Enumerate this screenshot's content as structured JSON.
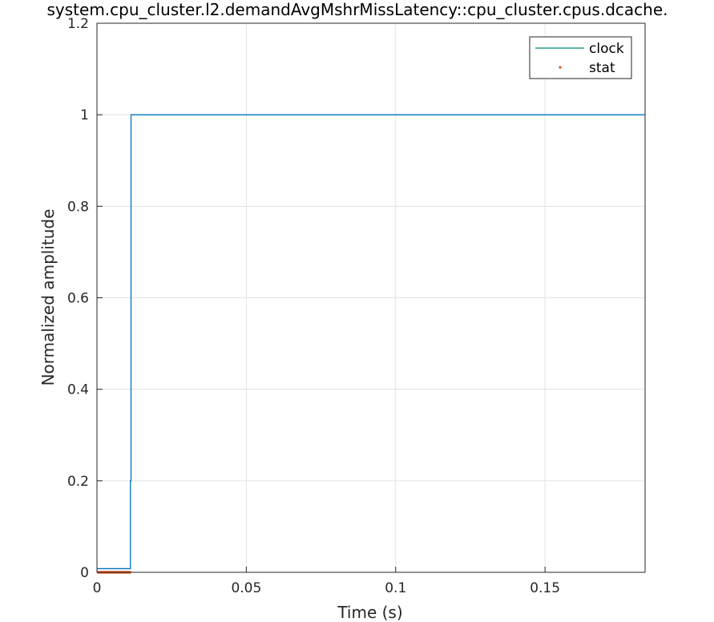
{
  "chart_data": {
    "type": "line",
    "title": "system.cpu_cluster.l2.demandAvgMshrMissLatency::cpu_cluster.cpus.dcache.",
    "xlabel": "Time (s)",
    "ylabel": "Normalized amplitude",
    "xlim": [
      0,
      0.1835
    ],
    "ylim": [
      0,
      1.2
    ],
    "xticks": [
      0,
      0.05,
      0.1,
      0.15
    ],
    "xtick_labels": [
      "0",
      "0.05",
      "0.1",
      "0.15"
    ],
    "yticks": [
      0,
      0.2,
      0.4,
      0.6,
      0.8,
      1,
      1.2
    ],
    "ytick_labels": [
      "0",
      "0.2",
      "0.4",
      "0.6",
      "0.8",
      "1",
      "1.2"
    ],
    "grid": true,
    "legend_position": "top-right",
    "series": [
      {
        "name": "clock",
        "style": "line",
        "color": "#0072BD",
        "legend_color": "#00897B",
        "x": [
          0,
          0.0112,
          0.0112,
          0.0114,
          0.0114,
          0.1835
        ],
        "y": [
          0.008,
          0.008,
          0.2,
          0.2,
          1,
          1
        ]
      },
      {
        "name": "stat",
        "style": "markers",
        "color": "#D95319",
        "x": [
          0.0005,
          0.001,
          0.0015,
          0.002,
          0.0025,
          0.003,
          0.0035,
          0.004,
          0.0045,
          0.005,
          0.0055,
          0.006,
          0.0065,
          0.007,
          0.0075,
          0.008,
          0.0085,
          0.009,
          0.0095,
          0.01,
          0.0105,
          0.011
        ],
        "y": [
          0,
          0,
          0,
          0,
          0,
          0,
          0,
          0,
          0,
          0,
          0,
          0,
          0,
          0,
          0,
          0,
          0,
          0,
          0,
          0,
          0,
          0
        ]
      }
    ]
  }
}
